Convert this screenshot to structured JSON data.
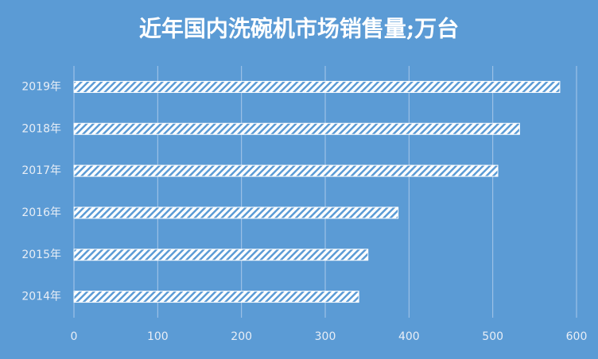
{
  "chart_data": {
    "type": "hbar",
    "title": "近年国内洗碗机市场销售量;万台",
    "categories": [
      "2014年",
      "2015年",
      "2016年",
      "2017年",
      "2018年",
      "2019年"
    ],
    "values": [
      340,
      351,
      387,
      506,
      532,
      580
    ],
    "color": "#ffffff",
    "xlim": [
      0,
      600
    ],
    "xticks": [
      0,
      100,
      200,
      300,
      400,
      500,
      600
    ],
    "grid": true
  }
}
